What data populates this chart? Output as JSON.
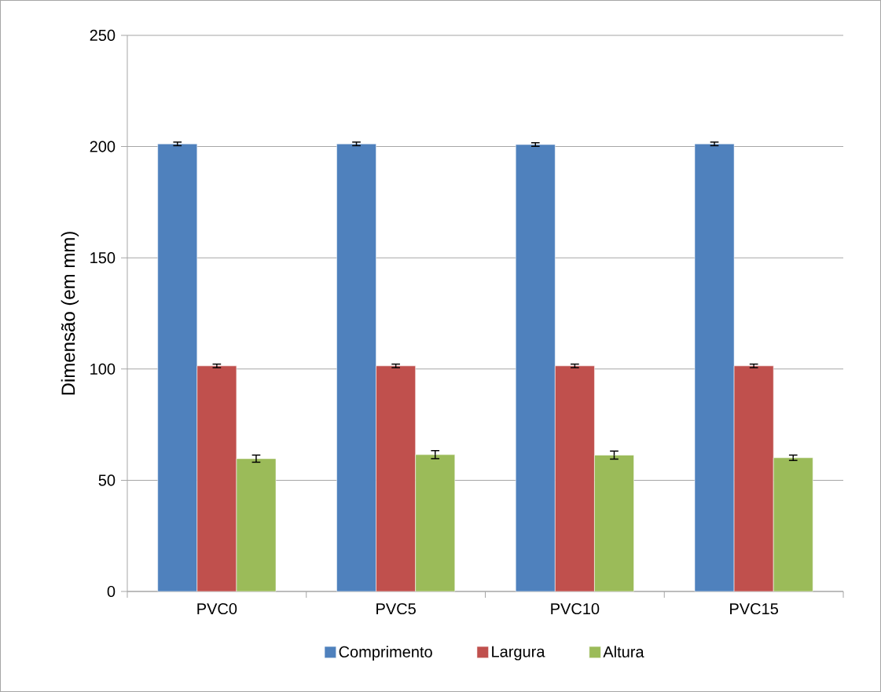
{
  "chart_data": {
    "type": "bar",
    "ylabel": "Dimensão (em mm)",
    "categories": [
      "PVC0",
      "PVC5",
      "PVC10",
      "PVC15"
    ],
    "series": [
      {
        "name": "Comprimento",
        "color": "#4f81bd",
        "values": [
          201.2,
          201.2,
          200.9,
          201.2
        ],
        "errors": [
          0.8,
          0.8,
          0.8,
          0.8
        ]
      },
      {
        "name": "Largura",
        "color": "#c0504d",
        "values": [
          101.4,
          101.4,
          101.4,
          101.4
        ],
        "errors": [
          0.8,
          0.8,
          0.8,
          0.8
        ]
      },
      {
        "name": "Altura",
        "color": "#9bbb59",
        "values": [
          59.7,
          61.5,
          61.3,
          60.1
        ],
        "errors": [
          1.6,
          1.8,
          1.8,
          1.2
        ]
      }
    ],
    "ylim": [
      0,
      250
    ],
    "yticks": [
      0,
      50,
      100,
      150,
      200,
      250
    ],
    "grid": "y",
    "legend": "bottom"
  }
}
